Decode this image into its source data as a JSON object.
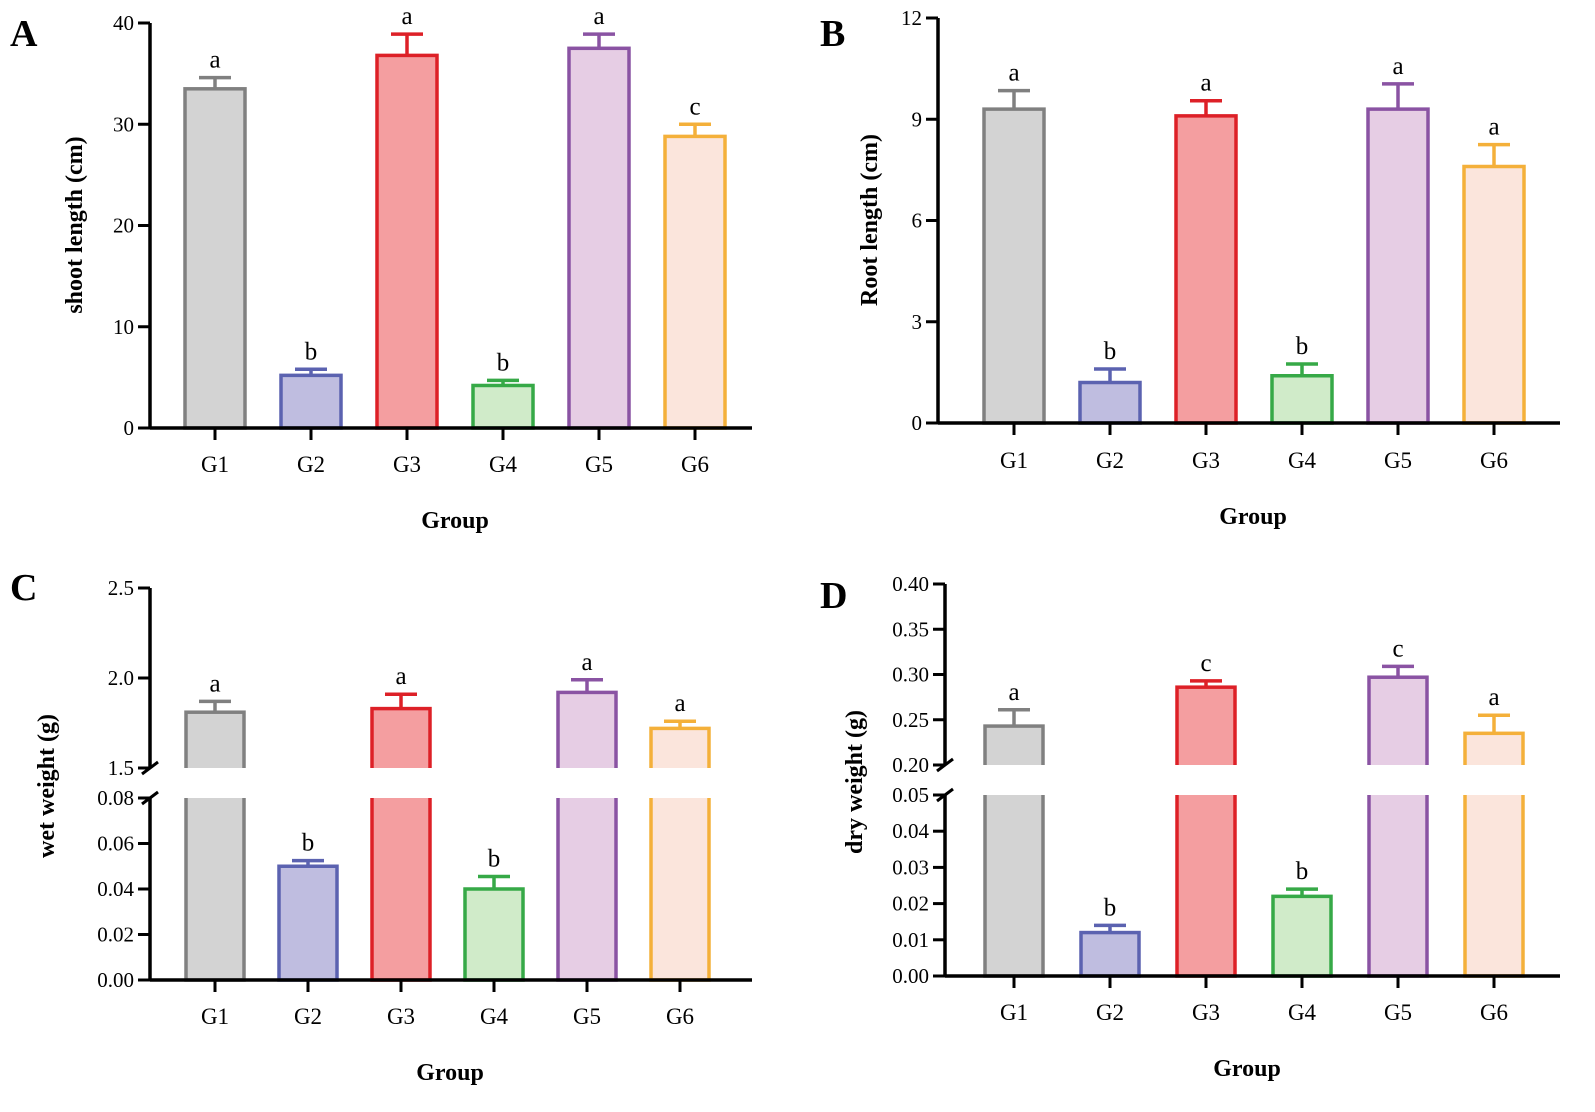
{
  "group_colors": [
    {
      "fill": "#d3d3d3",
      "stroke": "#808080"
    },
    {
      "fill": "#bfbde0",
      "stroke": "#5b62b0"
    },
    {
      "fill": "#f49ea0",
      "stroke": "#dd2027"
    },
    {
      "fill": "#d0ebc9",
      "stroke": "#36a947"
    },
    {
      "fill": "#e6cde4",
      "stroke": "#8a53a3"
    },
    {
      "fill": "#fbe5dc",
      "stroke": "#f4b03a"
    }
  ],
  "chart_data": [
    {
      "panel": "A",
      "type": "bar",
      "title": "",
      "xlabel": "Group",
      "ylabel": "shoot length (cm)",
      "categories": [
        "G1",
        "G2",
        "G3",
        "G4",
        "G5",
        "G6"
      ],
      "values": [
        33.5,
        5.2,
        36.8,
        4.2,
        37.5,
        28.8
      ],
      "errors": [
        1.1,
        0.6,
        2.1,
        0.5,
        1.4,
        1.2
      ],
      "labels": [
        "a",
        "b",
        "a",
        "b",
        "a",
        "c"
      ],
      "ylim": [
        0,
        40
      ],
      "yticks": [
        "0",
        "10",
        "20",
        "30",
        "40"
      ]
    },
    {
      "panel": "B",
      "type": "bar",
      "title": "",
      "xlabel": "Group",
      "ylabel": "Root length (cm)",
      "categories": [
        "G1",
        "G2",
        "G3",
        "G4",
        "G5",
        "G6"
      ],
      "values": [
        9.3,
        1.2,
        9.1,
        1.4,
        9.3,
        7.6
      ],
      "errors": [
        0.55,
        0.4,
        0.45,
        0.35,
        0.75,
        0.65
      ],
      "labels": [
        "a",
        "b",
        "a",
        "b",
        "a",
        "a"
      ],
      "ylim": [
        0,
        12
      ],
      "yticks": [
        "0",
        "3",
        "6",
        "9",
        "12"
      ]
    },
    {
      "panel": "C",
      "type": "bar",
      "title": "",
      "xlabel": "Group",
      "ylabel": "wet weight (g)",
      "categories": [
        "G1",
        "G2",
        "G3",
        "G4",
        "G5",
        "G6"
      ],
      "values": [
        1.81,
        0.05,
        1.83,
        0.04,
        1.92,
        1.72
      ],
      "errors": [
        0.06,
        0.0025,
        0.08,
        0.0055,
        0.07,
        0.04
      ],
      "labels": [
        "a",
        "b",
        "a",
        "b",
        "a",
        "a"
      ],
      "broken_axis": {
        "lower_range": [
          0,
          0.08
        ],
        "upper_range": [
          1.5,
          2.5
        ]
      },
      "lower_ticks": [
        "0.00",
        "0.02",
        "0.04",
        "0.06",
        "0.08"
      ],
      "upper_ticks": [
        "1.5",
        "2.0",
        "2.5"
      ]
    },
    {
      "panel": "D",
      "type": "bar",
      "title": "",
      "xlabel": "Group",
      "ylabel": "dry weight (g)",
      "categories": [
        "G1",
        "G2",
        "G3",
        "G4",
        "G5",
        "G6"
      ],
      "values": [
        0.243,
        0.012,
        0.286,
        0.022,
        0.297,
        0.235
      ],
      "errors": [
        0.018,
        0.002,
        0.007,
        0.002,
        0.012,
        0.02
      ],
      "labels": [
        "a",
        "b",
        "c",
        "b",
        "c",
        "a"
      ],
      "broken_axis": {
        "lower_range": [
          0,
          0.05
        ],
        "upper_range": [
          0.2,
          0.4
        ]
      },
      "lower_ticks": [
        "0.00",
        "0.01",
        "0.02",
        "0.03",
        "0.04",
        "0.05"
      ],
      "upper_ticks": [
        "0.20",
        "0.25",
        "0.30",
        "0.35",
        "0.40"
      ]
    }
  ]
}
